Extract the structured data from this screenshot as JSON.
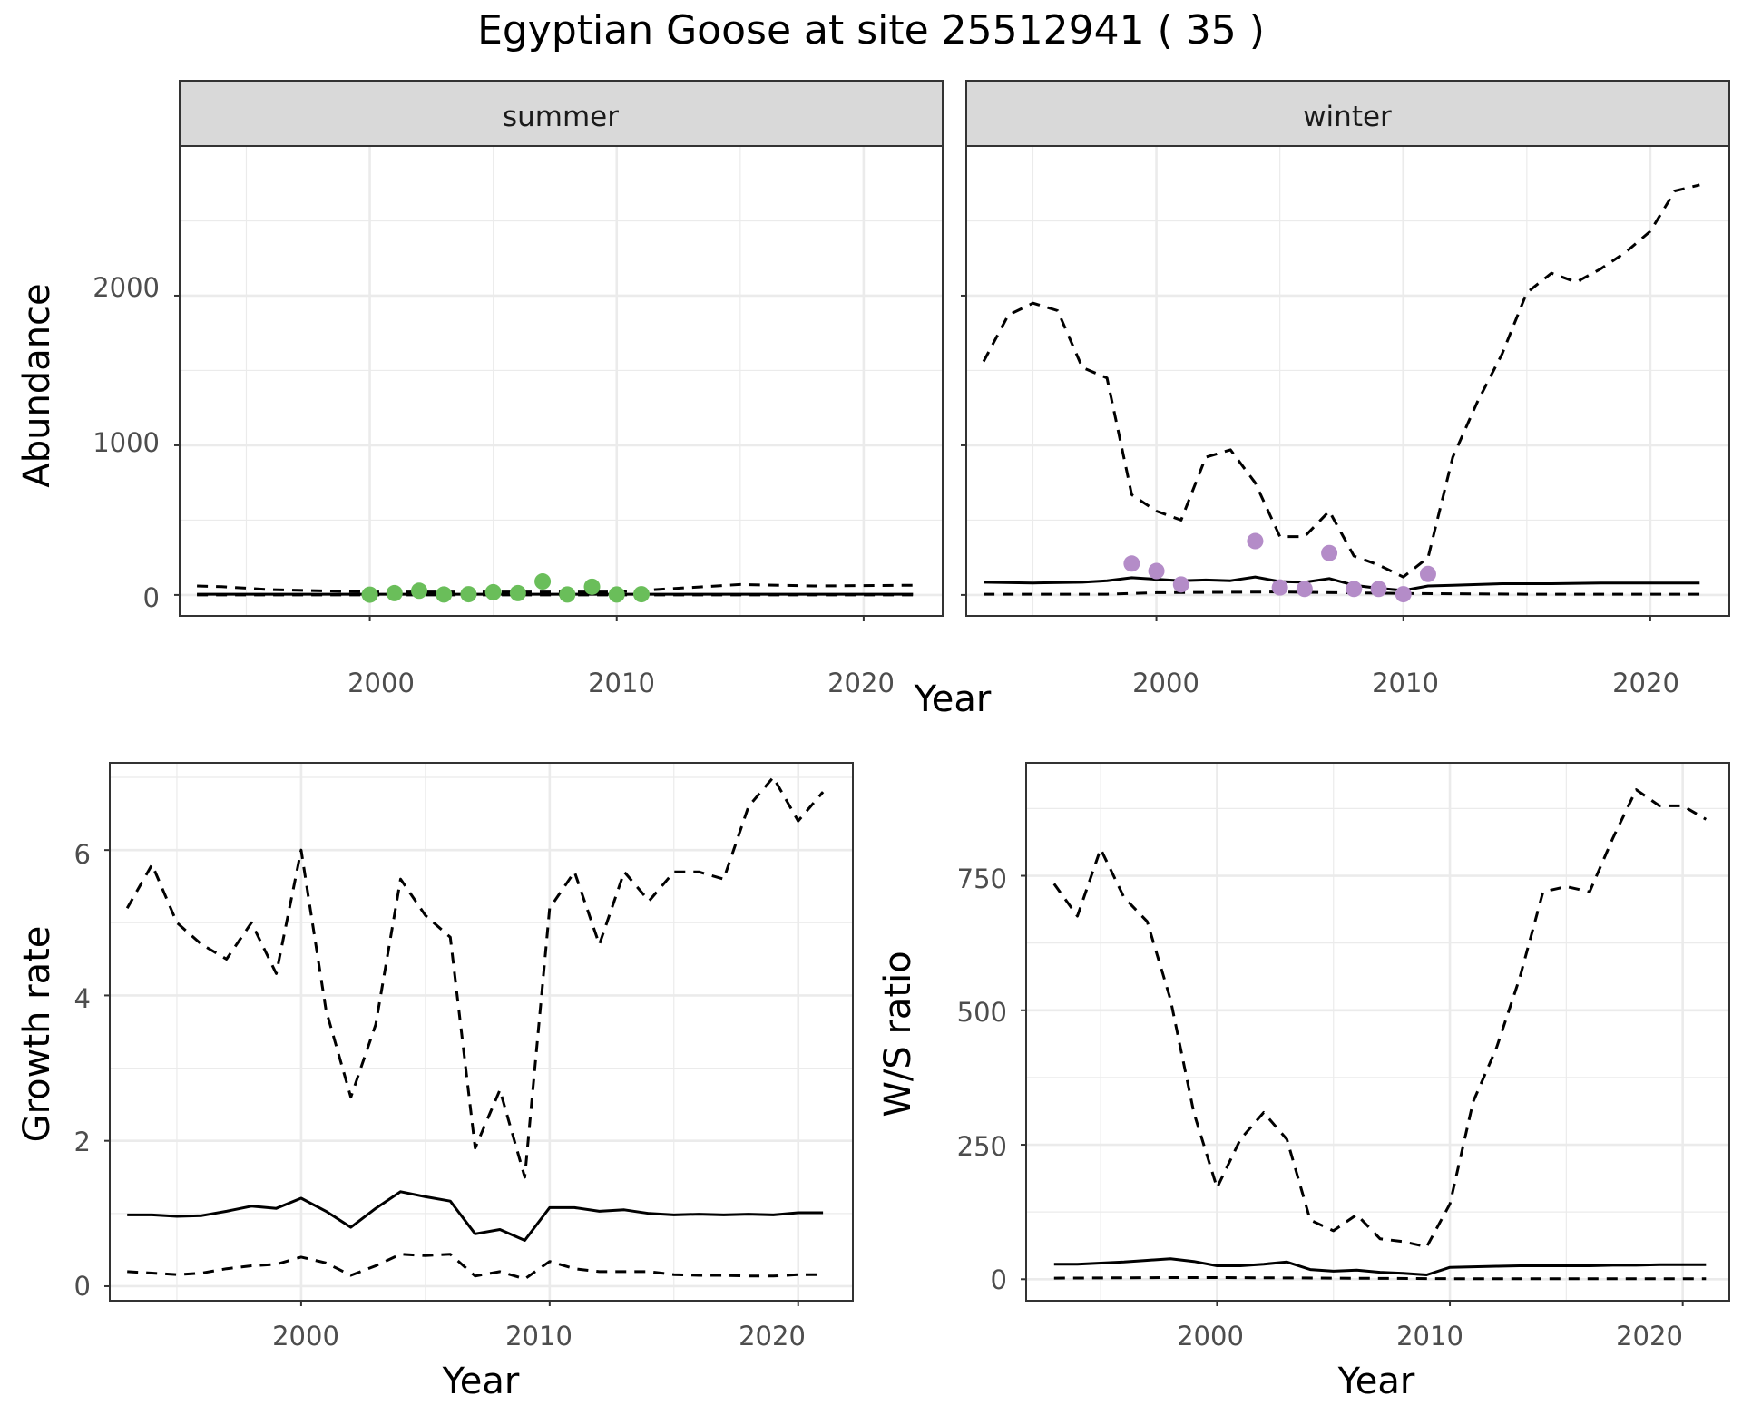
{
  "title": "Egyptian Goose at site 25512941 ( 35 )",
  "colors": {
    "summer_points": "#6ABE5A",
    "winter_points": "#B48CC8",
    "lines": "#000000",
    "strip_fill": "#D9D9D9",
    "grid": "#EBEBEB"
  },
  "chart_data": [
    {
      "type": "line",
      "facet": "summer",
      "xlabel": "Year",
      "ylabel": "Abundance",
      "xlim": [
        1992.3,
        2023.2
      ],
      "ylim": [
        -140,
        3000
      ],
      "xticks": [
        2000,
        2010,
        2020
      ],
      "yticks": [
        0,
        1000,
        2000
      ],
      "grid": true,
      "series": [
        {
          "style": "solid",
          "x": [
            1993,
            1995,
            2000,
            2005,
            2010,
            2015,
            2020,
            2022
          ],
          "y": [
            5,
            5,
            5,
            5,
            5,
            5,
            5,
            5
          ]
        },
        {
          "style": "dashed-upper",
          "x": [
            1993,
            1994,
            1996,
            2000,
            2005,
            2010,
            2012,
            2015,
            2018,
            2022
          ],
          "y": [
            60,
            55,
            35,
            20,
            20,
            20,
            40,
            70,
            60,
            65
          ]
        },
        {
          "style": "dashed-lower",
          "x": [
            1993,
            2022
          ],
          "y": [
            0,
            0
          ]
        },
        {
          "style": "points",
          "x": [
            2000,
            2001,
            2002,
            2003,
            2004,
            2005,
            2006,
            2007,
            2008,
            2009,
            2010,
            2011
          ],
          "y": [
            2,
            12,
            28,
            3,
            5,
            18,
            12,
            90,
            3,
            55,
            3,
            5
          ]
        }
      ]
    },
    {
      "type": "line",
      "facet": "winter",
      "xlabel": "Year",
      "ylabel": "Abundance",
      "xlim": [
        1992.3,
        2023.2
      ],
      "ylim": [
        -140,
        3000
      ],
      "xticks": [
        2000,
        2010,
        2020
      ],
      "yticks": [
        0,
        1000,
        2000
      ],
      "grid": true,
      "series": [
        {
          "style": "solid",
          "x": [
            1993,
            1995,
            1997,
            1998,
            1999,
            2000,
            2001,
            2002,
            2003,
            2004,
            2005,
            2006,
            2007,
            2008,
            2009,
            2010,
            2011,
            2012,
            2014,
            2016,
            2018,
            2020,
            2022
          ],
          "y": [
            85,
            80,
            85,
            95,
            115,
            105,
            95,
            100,
            95,
            120,
            90,
            85,
            110,
            65,
            45,
            30,
            60,
            65,
            75,
            75,
            80,
            80,
            80
          ]
        },
        {
          "style": "dashed-upper",
          "x": [
            1993,
            1994,
            1995,
            1996,
            1997,
            1998,
            1999,
            2000,
            2001,
            2002,
            2003,
            2004,
            2005,
            2006,
            2007,
            2008,
            2009,
            2010,
            2011,
            2012,
            2013,
            2014,
            2015,
            2016,
            2017,
            2018,
            2019,
            2020,
            2021,
            2022
          ],
          "y": [
            1560,
            1870,
            1950,
            1900,
            1520,
            1450,
            670,
            560,
            500,
            920,
            970,
            750,
            390,
            390,
            560,
            260,
            200,
            120,
            250,
            920,
            1290,
            1610,
            2020,
            2150,
            2090,
            2180,
            2290,
            2430,
            2700,
            2740
          ]
        },
        {
          "style": "dashed-lower",
          "x": [
            1993,
            1998,
            2000,
            2005,
            2010,
            2015,
            2022
          ],
          "y": [
            5,
            5,
            15,
            20,
            10,
            5,
            5
          ]
        },
        {
          "style": "points",
          "x": [
            1999,
            2000,
            2001,
            2004,
            2005,
            2006,
            2007,
            2008,
            2009,
            2010,
            2011
          ],
          "y": [
            210,
            160,
            70,
            360,
            50,
            40,
            280,
            40,
            40,
            5,
            140
          ]
        }
      ]
    },
    {
      "type": "line",
      "xlabel": "Year",
      "ylabel": "Growth rate",
      "xlim": [
        1992.3,
        2022.2
      ],
      "ylim": [
        -0.2,
        7.2
      ],
      "xticks": [
        2000,
        2010,
        2020
      ],
      "yticks": [
        0,
        2,
        4,
        6
      ],
      "grid": true,
      "series": [
        {
          "style": "solid",
          "x": [
            1993,
            1994,
            1995,
            1996,
            1997,
            1998,
            1999,
            2000,
            2001,
            2002,
            2003,
            2004,
            2005,
            2006,
            2007,
            2008,
            2009,
            2010,
            2011,
            2012,
            2013,
            2014,
            2015,
            2016,
            2017,
            2018,
            2019,
            2020,
            2021
          ],
          "y": [
            0.98,
            0.98,
            0.96,
            0.97,
            1.03,
            1.1,
            1.07,
            1.21,
            1.03,
            0.81,
            1.07,
            1.3,
            1.23,
            1.17,
            0.72,
            0.78,
            0.63,
            1.08,
            1.08,
            1.03,
            1.05,
            1.0,
            0.98,
            0.99,
            0.98,
            0.99,
            0.98,
            1.01,
            1.01
          ]
        },
        {
          "style": "dashed-upper",
          "x": [
            1993,
            1994,
            1995,
            1996,
            1997,
            1998,
            1999,
            2000,
            2001,
            2002,
            2003,
            2004,
            2005,
            2006,
            2007,
            2008,
            2009,
            2010,
            2011,
            2012,
            2013,
            2014,
            2015,
            2016,
            2017,
            2018,
            2019,
            2020,
            2021
          ],
          "y": [
            5.2,
            5.8,
            5.0,
            4.7,
            4.5,
            5.0,
            4.3,
            6.0,
            3.8,
            2.6,
            3.6,
            5.6,
            5.1,
            4.8,
            1.9,
            2.7,
            1.5,
            5.2,
            5.7,
            4.7,
            5.7,
            5.3,
            5.7,
            5.7,
            5.6,
            6.6,
            7.0,
            6.4,
            6.8
          ]
        },
        {
          "style": "dashed-lower",
          "x": [
            1993,
            1994,
            1995,
            1996,
            1997,
            1998,
            1999,
            2000,
            2001,
            2002,
            2003,
            2004,
            2005,
            2006,
            2007,
            2008,
            2009,
            2010,
            2011,
            2012,
            2013,
            2014,
            2015,
            2016,
            2017,
            2018,
            2019,
            2020,
            2021
          ],
          "y": [
            0.2,
            0.18,
            0.16,
            0.18,
            0.24,
            0.28,
            0.3,
            0.4,
            0.32,
            0.15,
            0.28,
            0.44,
            0.42,
            0.44,
            0.14,
            0.2,
            0.1,
            0.34,
            0.24,
            0.2,
            0.2,
            0.2,
            0.16,
            0.15,
            0.15,
            0.14,
            0.14,
            0.16,
            0.16
          ]
        }
      ]
    },
    {
      "type": "line",
      "xlabel": "Year",
      "ylabel": "W/S ratio",
      "xlim": [
        1991.8,
        2022.0
      ],
      "ylim": [
        -40,
        960
      ],
      "xticks": [
        2000,
        2010,
        2020
      ],
      "yticks": [
        0,
        250,
        500,
        750
      ],
      "grid": true,
      "series": [
        {
          "style": "solid",
          "x": [
            1993,
            1994,
            1995,
            1996,
            1997,
            1998,
            1999,
            2000,
            2001,
            2002,
            2003,
            2004,
            2005,
            2006,
            2007,
            2008,
            2009,
            2010,
            2011,
            2012,
            2013,
            2014,
            2015,
            2016,
            2017,
            2018,
            2019,
            2020,
            2021
          ],
          "y": [
            28,
            28,
            30,
            32,
            35,
            38,
            33,
            25,
            25,
            28,
            32,
            18,
            15,
            17,
            13,
            11,
            8,
            22,
            23,
            24,
            25,
            25,
            25,
            25,
            26,
            26,
            27,
            27,
            27
          ]
        },
        {
          "style": "dashed-upper",
          "x": [
            1993,
            1994,
            1995,
            1996,
            1997,
            1998,
            1999,
            2000,
            2001,
            2002,
            2003,
            2004,
            2005,
            2006,
            2007,
            2008,
            2009,
            2010,
            2011,
            2012,
            2013,
            2014,
            2015,
            2016,
            2017,
            2018,
            2019,
            2020,
            2021
          ],
          "y": [
            735,
            675,
            800,
            710,
            665,
            520,
            310,
            170,
            260,
            310,
            260,
            110,
            90,
            120,
            75,
            70,
            60,
            140,
            330,
            430,
            560,
            720,
            730,
            720,
            820,
            910,
            880,
            880,
            855
          ]
        },
        {
          "style": "dashed-lower",
          "x": [
            1993,
            1998,
            2000,
            2005,
            2010,
            2015,
            2021
          ],
          "y": [
            2,
            3,
            3,
            2,
            1,
            1,
            1
          ]
        }
      ]
    }
  ],
  "facets": {
    "summer": "summer",
    "winter": "winter"
  },
  "axis_titles": {
    "top_x": "Year",
    "top_y": "Abundance",
    "bl_x": "Year",
    "bl_y": "Growth rate",
    "br_x": "Year",
    "br_y": "W/S ratio"
  },
  "tick_labels": {
    "top_y": [
      "2000",
      "1000",
      "0"
    ],
    "summer_x": [
      "2000",
      "2010",
      "2020"
    ],
    "winter_x": [
      "2000",
      "2010",
      "2020"
    ],
    "bl_y": [
      "6",
      "4",
      "2",
      "0"
    ],
    "bl_x": [
      "2000",
      "2010",
      "2020"
    ],
    "br_y": [
      "750",
      "500",
      "250",
      "0"
    ],
    "br_x": [
      "2000",
      "2010",
      "2020"
    ]
  }
}
